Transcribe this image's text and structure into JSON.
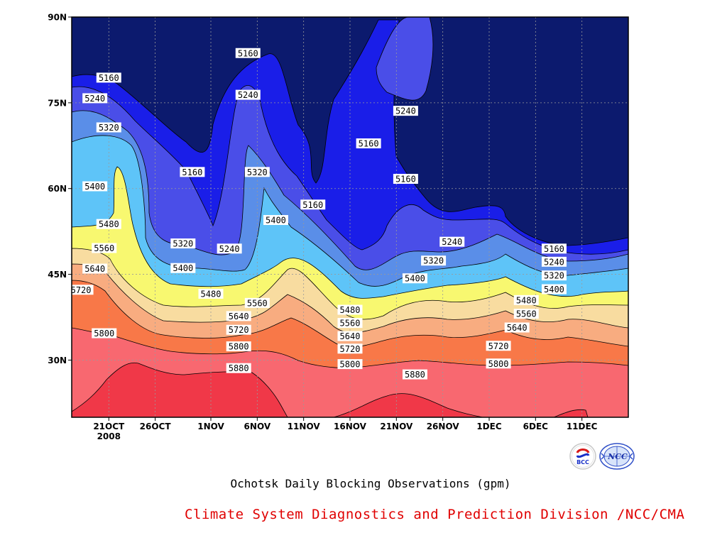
{
  "chart_data": {
    "type": "heatmap",
    "title": "Ochotsk Daily Blocking Observations (gpm)",
    "xlabel": "",
    "ylabel": "",
    "x_range": [
      "2008-10-17",
      "2008-12-16"
    ],
    "ylim": [
      20,
      90
    ],
    "x_ticks": [
      {
        "label": "21OCT",
        "sublabel": "2008",
        "date": "2008-10-21"
      },
      {
        "label": "26OCT",
        "date": "2008-10-26"
      },
      {
        "label": "1NOV",
        "date": "2008-11-01"
      },
      {
        "label": "6NOV",
        "date": "2008-11-06"
      },
      {
        "label": "11NOV",
        "date": "2008-11-11"
      },
      {
        "label": "16NOV",
        "date": "2008-11-16"
      },
      {
        "label": "21NOV",
        "date": "2008-11-21"
      },
      {
        "label": "26NOV",
        "date": "2008-11-26"
      },
      {
        "label": "1DEC",
        "date": "2008-12-01"
      },
      {
        "label": "6DEC",
        "date": "2008-12-06"
      },
      {
        "label": "11DEC",
        "date": "2008-12-11"
      }
    ],
    "y_ticks": [
      {
        "label": "30N",
        "value": 30
      },
      {
        "label": "45N",
        "value": 45
      },
      {
        "label": "60N",
        "value": 60
      },
      {
        "label": "75N",
        "value": 75
      },
      {
        "label": "90N",
        "value": 90
      }
    ],
    "grid": true,
    "levels": [
      5160,
      5240,
      5320,
      5400,
      5480,
      5560,
      5640,
      5720,
      5800,
      5880
    ],
    "fill_colors": [
      "#0c1a6e",
      "#1a1ee8",
      "#4a4ee8",
      "#5a8ee8",
      "#5ec4f8",
      "#f8f870",
      "#f8dca0",
      "#f8ac80",
      "#f87848",
      "#f86870",
      "#f03848"
    ],
    "contour_labels": [
      {
        "text": "5160",
        "date": "2008-10-21",
        "lat": 79.4
      },
      {
        "text": "5240",
        "date": "2008-10-19.5",
        "lat": 75.8
      },
      {
        "text": "5320",
        "date": "2008-10-21",
        "lat": 70.7
      },
      {
        "text": "5400",
        "date": "2008-10-19.5",
        "lat": 60.4
      },
      {
        "text": "5480",
        "date": "2008-10-21",
        "lat": 53.8
      },
      {
        "text": "5560",
        "date": "2008-10-20.5",
        "lat": 49.6
      },
      {
        "text": "5640",
        "date": "2008-10-19.5",
        "lat": 46.0
      },
      {
        "text": "5720",
        "date": "2008-10-18",
        "lat": 42.3
      },
      {
        "text": "5800",
        "date": "2008-10-20.5",
        "lat": 34.7
      },
      {
        "text": "5160",
        "date": "2008-11-05",
        "lat": 83.7
      },
      {
        "text": "5240",
        "date": "2008-11-05",
        "lat": 76.4
      },
      {
        "text": "5160",
        "date": "2008-10-30",
        "lat": 62.9
      },
      {
        "text": "5320",
        "date": "2008-11-06",
        "lat": 62.9
      },
      {
        "text": "5240",
        "date": "2008-11-03",
        "lat": 49.5
      },
      {
        "text": "5320",
        "date": "2008-10-29",
        "lat": 50.4
      },
      {
        "text": "5400",
        "date": "2008-10-29",
        "lat": 46.1
      },
      {
        "text": "5400",
        "date": "2008-11-08",
        "lat": 54.5
      },
      {
        "text": "5480",
        "date": "2008-11-01",
        "lat": 41.6
      },
      {
        "text": "5560",
        "date": "2008-11-06",
        "lat": 40.0
      },
      {
        "text": "5640",
        "date": "2008-11-04",
        "lat": 37.7
      },
      {
        "text": "5720",
        "date": "2008-11-04",
        "lat": 35.3
      },
      {
        "text": "5800",
        "date": "2008-11-04",
        "lat": 32.4
      },
      {
        "text": "5880",
        "date": "2008-11-04",
        "lat": 28.6
      },
      {
        "text": "5160",
        "date": "2008-11-12",
        "lat": 57.2
      },
      {
        "text": "5160",
        "date": "2008-11-18",
        "lat": 67.9
      },
      {
        "text": "5240",
        "date": "2008-11-22",
        "lat": 73.6
      },
      {
        "text": "5160",
        "date": "2008-11-22",
        "lat": 61.7
      },
      {
        "text": "5240",
        "date": "2008-11-27",
        "lat": 50.7
      },
      {
        "text": "5320",
        "date": "2008-11-25",
        "lat": 47.4
      },
      {
        "text": "5400",
        "date": "2008-11-23",
        "lat": 44.3
      },
      {
        "text": "5480",
        "date": "2008-11-16",
        "lat": 38.8
      },
      {
        "text": "5560",
        "date": "2008-11-16",
        "lat": 36.5
      },
      {
        "text": "5640",
        "date": "2008-11-16",
        "lat": 34.2
      },
      {
        "text": "5720",
        "date": "2008-11-16",
        "lat": 32.0
      },
      {
        "text": "5800",
        "date": "2008-11-16",
        "lat": 29.3
      },
      {
        "text": "5880",
        "date": "2008-11-23",
        "lat": 27.5
      },
      {
        "text": "5480",
        "date": "2008-12-05",
        "lat": 40.5
      },
      {
        "text": "5560",
        "date": "2008-12-05",
        "lat": 38.1
      },
      {
        "text": "5640",
        "date": "2008-12-04",
        "lat": 35.7
      },
      {
        "text": "5720",
        "date": "2008-12-02",
        "lat": 32.5
      },
      {
        "text": "5800",
        "date": "2008-12-02",
        "lat": 29.4
      },
      {
        "text": "5160",
        "date": "2008-12-08",
        "lat": 49.5
      },
      {
        "text": "5240",
        "date": "2008-12-08",
        "lat": 47.2
      },
      {
        "text": "5320",
        "date": "2008-12-08",
        "lat": 44.8
      },
      {
        "text": "5400",
        "date": "2008-12-08",
        "lat": 42.4
      }
    ]
  },
  "logos": [
    {
      "name": "bcc-logo",
      "text": "BCC"
    },
    {
      "name": "ncc-logo",
      "text": "NCC"
    }
  ],
  "title": "Ochotsk Daily Blocking Observations (gpm)",
  "footer": "Climate System Diagnostics and Prediction Division /NCC/CMA"
}
